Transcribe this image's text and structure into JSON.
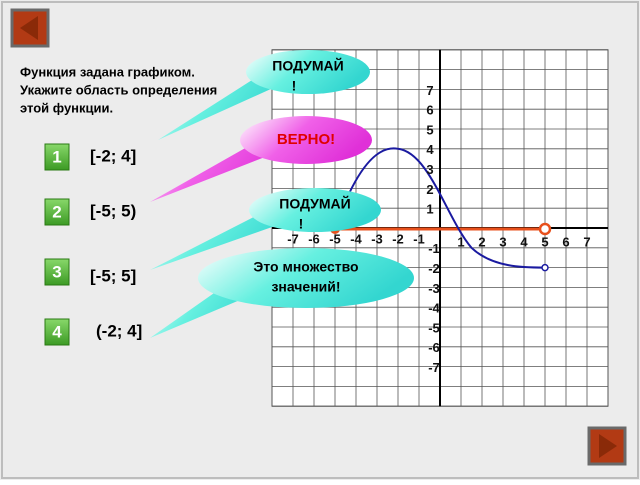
{
  "question": {
    "lines": [
      "Функция задана графиком.",
      "Укажите область определения",
      "этой функции."
    ]
  },
  "answers": [
    {
      "number": "1",
      "text": "[-2; 4]"
    },
    {
      "number": "2",
      "text": "[-5; 5)"
    },
    {
      "number": "3",
      "text": "[-5; 5]"
    },
    {
      "number": "4",
      "text": "(-2; 4]"
    }
  ],
  "callouts": [
    {
      "lines": [
        "ПОДУМАЙ",
        "!"
      ]
    },
    {
      "lines": [
        "ВЕРНО!"
      ]
    },
    {
      "lines": [
        "ПОДУМАЙ",
        "!"
      ]
    },
    {
      "lines": [
        "Это множество",
        "значений!"
      ]
    }
  ],
  "graph": {
    "x_labels_negative": [
      "-7",
      "-6",
      "-5",
      "-4",
      "-3",
      "-2",
      "-1"
    ],
    "x_labels_positive": [
      "1",
      "2",
      "3",
      "4",
      "5",
      "6",
      "7"
    ],
    "y_labels_positive": [
      "7",
      "6",
      "5",
      "4",
      "3",
      "2",
      "1"
    ],
    "y_labels_negative": [
      "-1",
      "-2",
      "-3",
      "-4",
      "-5",
      "-6",
      "-7"
    ]
  }
}
